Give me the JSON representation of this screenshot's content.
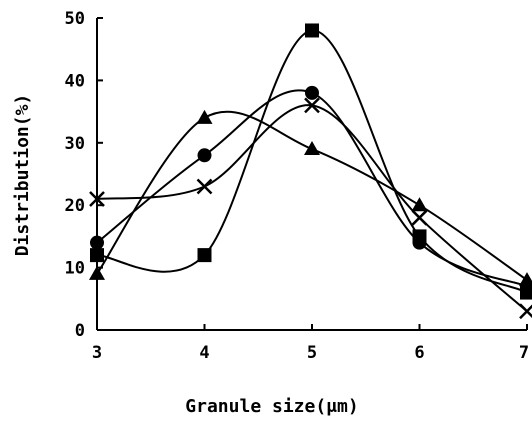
{
  "chart_data": {
    "type": "line",
    "xlabel": "Granule size(μm)",
    "ylabel": "Distribution(%)",
    "xlim": [
      3,
      7
    ],
    "ylim": [
      0,
      50
    ],
    "x_ticks": [
      "3",
      "4",
      "5",
      "6",
      "7"
    ],
    "y_ticks": [
      "0",
      "10",
      "20",
      "30",
      "40",
      "50"
    ],
    "grid": false,
    "legend": "none",
    "x": [
      3,
      4,
      5,
      6,
      7
    ],
    "series": [
      {
        "marker": "square",
        "values": [
          12,
          12,
          48,
          15,
          6
        ]
      },
      {
        "marker": "circle",
        "values": [
          14,
          28,
          38,
          14,
          7
        ]
      },
      {
        "marker": "triangle",
        "values": [
          9,
          34,
          29,
          20,
          8
        ]
      },
      {
        "marker": "cross",
        "values": [
          21,
          23,
          36,
          18,
          3
        ]
      }
    ]
  }
}
